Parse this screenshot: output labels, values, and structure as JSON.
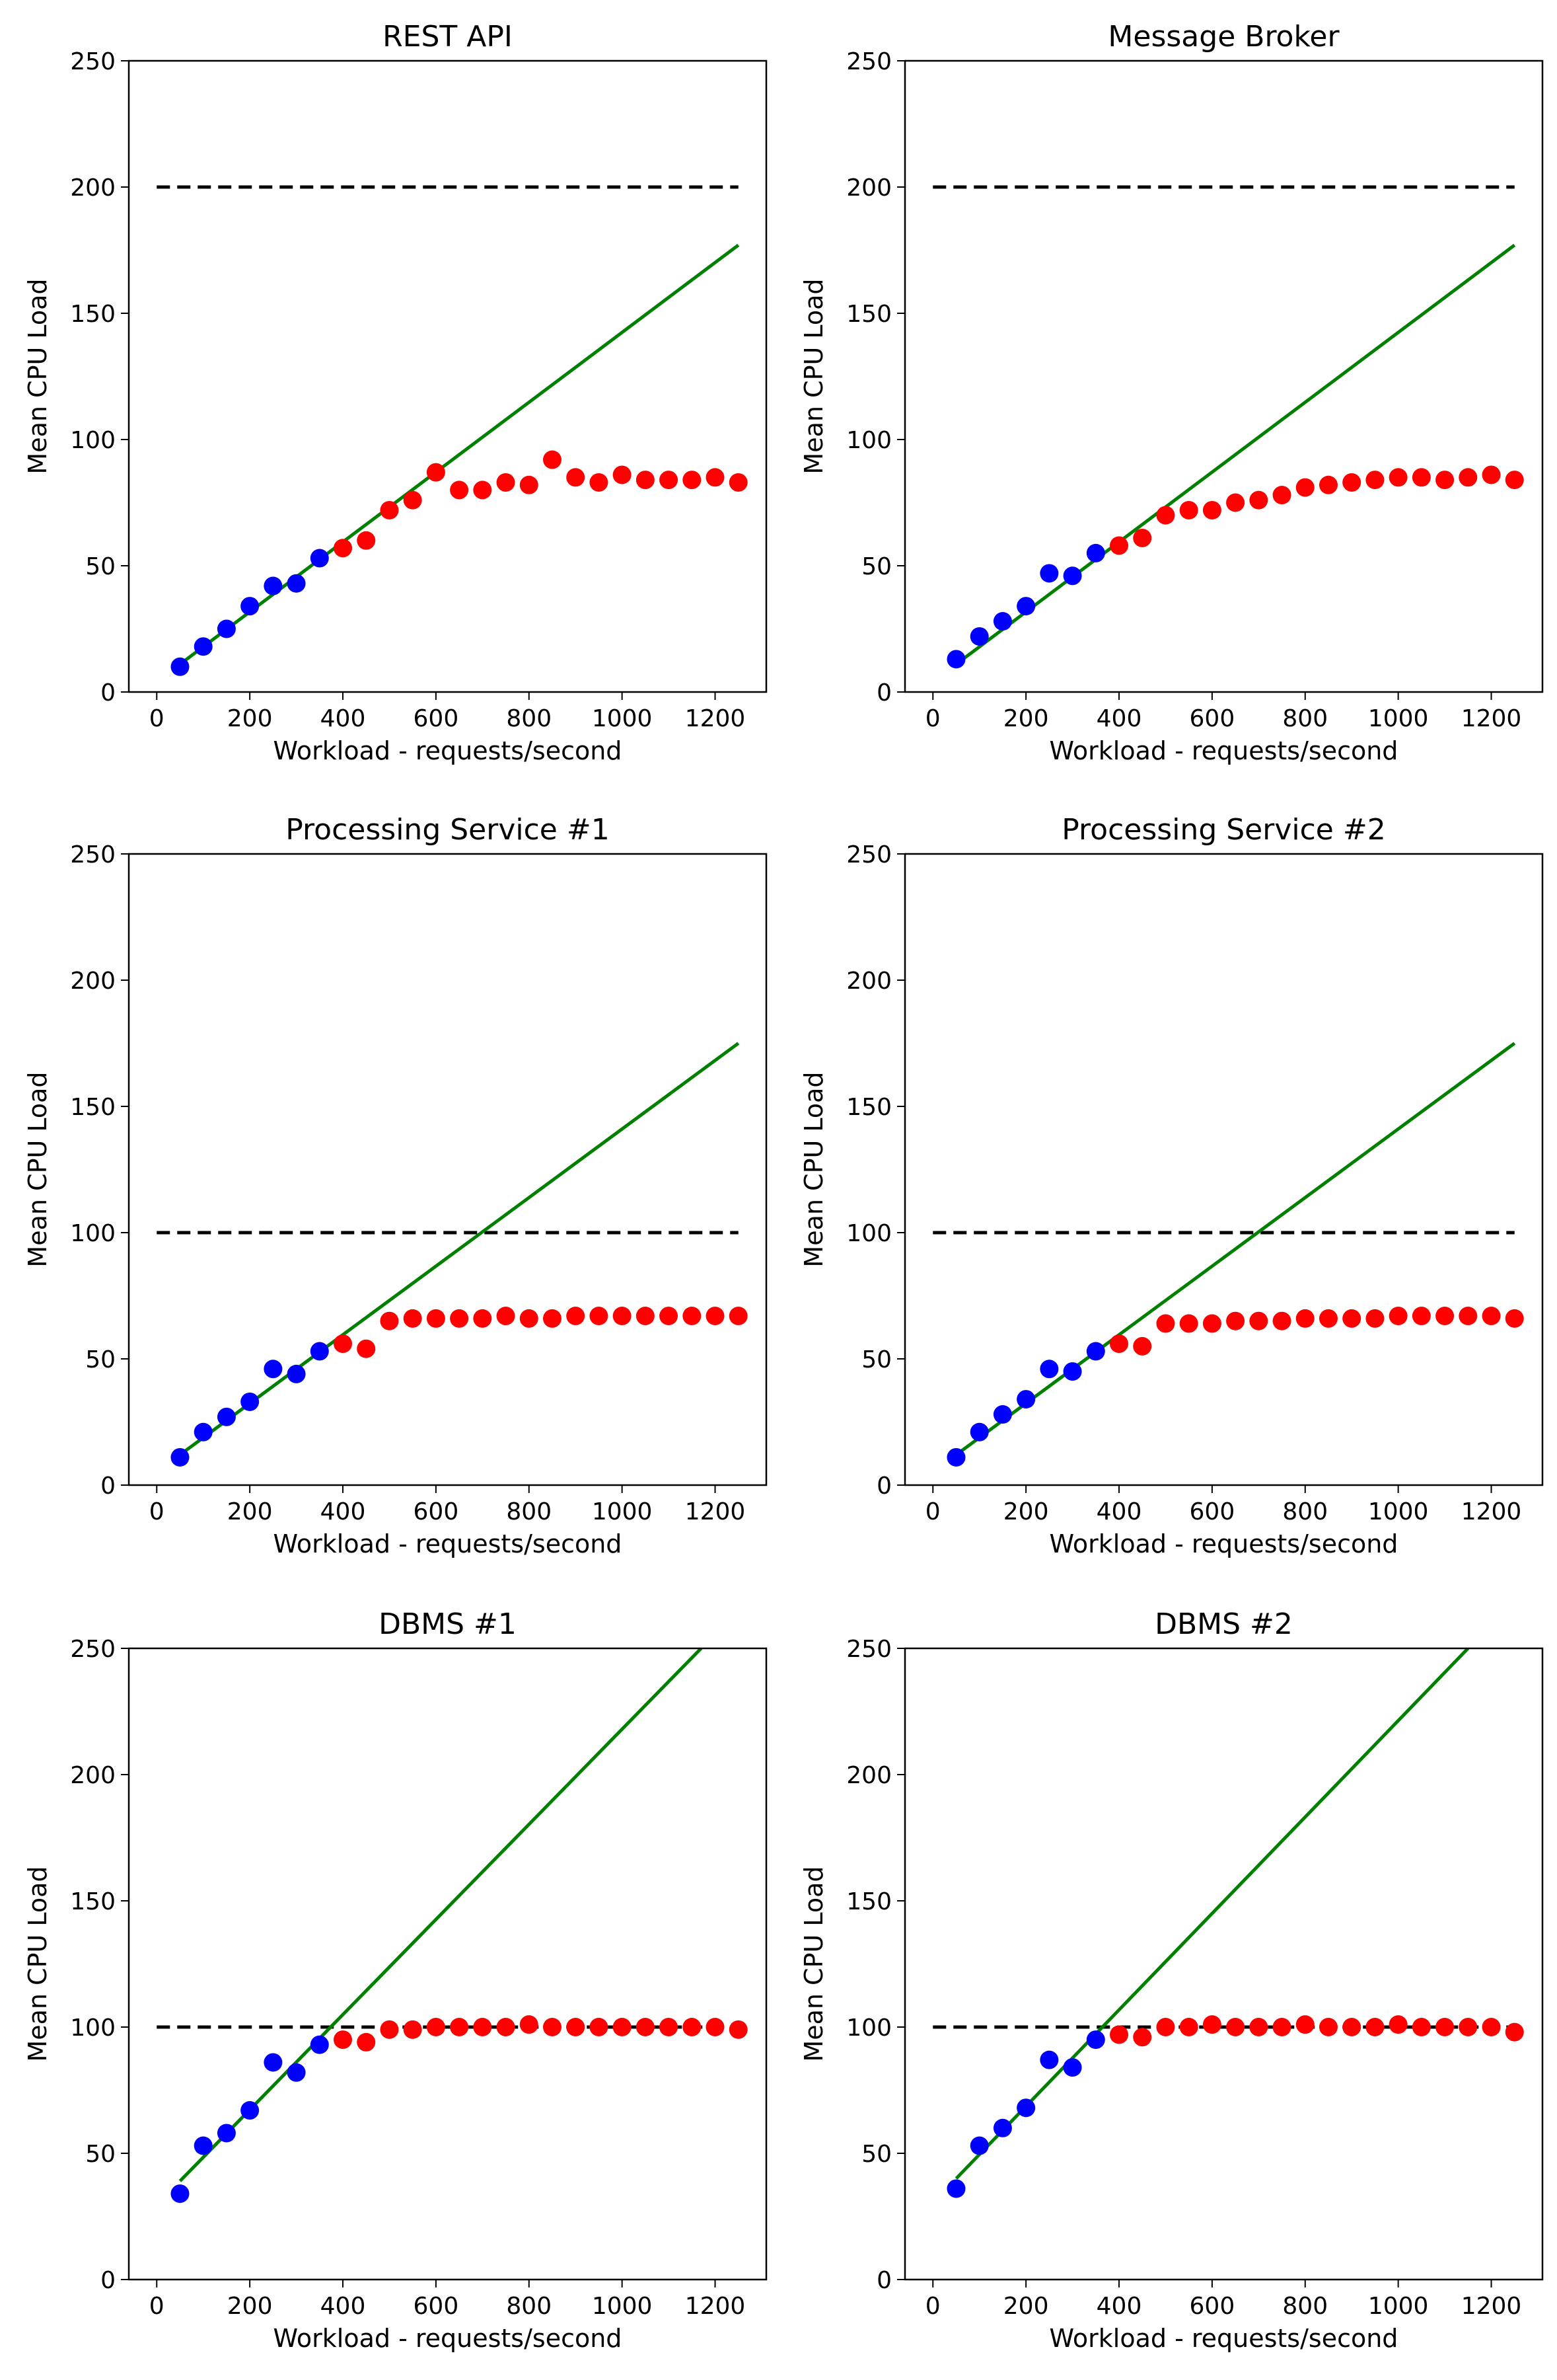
{
  "figure": {
    "xlabel": "Workload - requests/second",
    "ylabel": "Mean CPU Load",
    "colors": {
      "baseline_point": "#0000ff",
      "saturated_point": "#ff0000",
      "fit_line": "#008000",
      "threshold_line": "#000000"
    }
  },
  "chart_data": [
    {
      "type": "scatter",
      "title": "REST API",
      "xlabel": "Workload - requests/second",
      "ylabel": "Mean CPU Load",
      "xlim": [
        -60,
        1310
      ],
      "ylim": [
        0,
        250
      ],
      "xticks": [
        0,
        200,
        400,
        600,
        800,
        1000,
        1200
      ],
      "yticks": [
        0,
        50,
        100,
        150,
        200,
        250
      ],
      "threshold": 200,
      "threshold_x": [
        0,
        1250
      ],
      "fit_line": {
        "x": [
          50,
          1250
        ],
        "y": [
          11,
          177
        ]
      },
      "series": [
        {
          "name": "baseline",
          "color": "blue",
          "x": [
            50,
            100,
            150,
            200,
            250,
            300,
            350
          ],
          "y": [
            10,
            18,
            25,
            34,
            42,
            43,
            53
          ]
        },
        {
          "name": "saturated",
          "color": "red",
          "x": [
            400,
            450,
            500,
            550,
            600,
            650,
            700,
            750,
            800,
            850,
            900,
            950,
            1000,
            1050,
            1100,
            1150,
            1200,
            1250
          ],
          "y": [
            57,
            60,
            72,
            76,
            87,
            80,
            80,
            83,
            82,
            92,
            85,
            83,
            86,
            84,
            84,
            84,
            85,
            83
          ]
        }
      ]
    },
    {
      "type": "scatter",
      "title": "Message Broker",
      "xlabel": "Workload - requests/second",
      "ylabel": "Mean CPU Load",
      "xlim": [
        -60,
        1310
      ],
      "ylim": [
        0,
        250
      ],
      "xticks": [
        0,
        200,
        400,
        600,
        800,
        1000,
        1200
      ],
      "yticks": [
        0,
        50,
        100,
        150,
        200,
        250
      ],
      "threshold": 200,
      "threshold_x": [
        0,
        1250
      ],
      "fit_line": {
        "x": [
          50,
          1250
        ],
        "y": [
          11,
          177
        ]
      },
      "series": [
        {
          "name": "baseline",
          "color": "blue",
          "x": [
            50,
            100,
            150,
            200,
            250,
            300,
            350
          ],
          "y": [
            13,
            22,
            28,
            34,
            47,
            46,
            55
          ]
        },
        {
          "name": "saturated",
          "color": "red",
          "x": [
            400,
            450,
            500,
            550,
            600,
            650,
            700,
            750,
            800,
            850,
            900,
            950,
            1000,
            1050,
            1100,
            1150,
            1200,
            1250
          ],
          "y": [
            58,
            61,
            70,
            72,
            72,
            75,
            76,
            78,
            81,
            82,
            83,
            84,
            85,
            85,
            84,
            85,
            86,
            84
          ]
        }
      ]
    },
    {
      "type": "scatter",
      "title": "Processing Service #1",
      "xlabel": "Workload - requests/second",
      "ylabel": "Mean CPU Load",
      "xlim": [
        -60,
        1310
      ],
      "ylim": [
        0,
        250
      ],
      "xticks": [
        0,
        200,
        400,
        600,
        800,
        1000,
        1200
      ],
      "yticks": [
        0,
        50,
        100,
        150,
        200,
        250
      ],
      "threshold": 100,
      "threshold_x": [
        0,
        1250
      ],
      "fit_line": {
        "x": [
          50,
          1250
        ],
        "y": [
          12,
          175
        ]
      },
      "series": [
        {
          "name": "baseline",
          "color": "blue",
          "x": [
            50,
            100,
            150,
            200,
            250,
            300,
            350
          ],
          "y": [
            11,
            21,
            27,
            33,
            46,
            44,
            53
          ]
        },
        {
          "name": "saturated",
          "color": "red",
          "x": [
            400,
            450,
            500,
            550,
            600,
            650,
            700,
            750,
            800,
            850,
            900,
            950,
            1000,
            1050,
            1100,
            1150,
            1200,
            1250
          ],
          "y": [
            56,
            54,
            65,
            66,
            66,
            66,
            66,
            67,
            66,
            66,
            67,
            67,
            67,
            67,
            67,
            67,
            67,
            67
          ]
        }
      ]
    },
    {
      "type": "scatter",
      "title": "Processing Service #2",
      "xlabel": "Workload - requests/second",
      "ylabel": "Mean CPU Load",
      "xlim": [
        -60,
        1310
      ],
      "ylim": [
        0,
        250
      ],
      "xticks": [
        0,
        200,
        400,
        600,
        800,
        1000,
        1200
      ],
      "yticks": [
        0,
        50,
        100,
        150,
        200,
        250
      ],
      "threshold": 100,
      "threshold_x": [
        0,
        1250
      ],
      "fit_line": {
        "x": [
          50,
          1250
        ],
        "y": [
          12,
          175
        ]
      },
      "series": [
        {
          "name": "baseline",
          "color": "blue",
          "x": [
            50,
            100,
            150,
            200,
            250,
            300,
            350
          ],
          "y": [
            11,
            21,
            28,
            34,
            46,
            45,
            53
          ]
        },
        {
          "name": "saturated",
          "color": "red",
          "x": [
            400,
            450,
            500,
            550,
            600,
            650,
            700,
            750,
            800,
            850,
            900,
            950,
            1000,
            1050,
            1100,
            1150,
            1200,
            1250
          ],
          "y": [
            56,
            55,
            64,
            64,
            64,
            65,
            65,
            65,
            66,
            66,
            66,
            66,
            67,
            67,
            67,
            67,
            67,
            66
          ]
        }
      ]
    },
    {
      "type": "scatter",
      "title": "DBMS #1",
      "xlabel": "Workload - requests/second",
      "ylabel": "Mean CPU Load",
      "xlim": [
        -60,
        1310
      ],
      "ylim": [
        0,
        250
      ],
      "xticks": [
        0,
        200,
        400,
        600,
        800,
        1000,
        1200
      ],
      "yticks": [
        0,
        50,
        100,
        150,
        200,
        250
      ],
      "threshold": 100,
      "threshold_x": [
        0,
        1250
      ],
      "fit_line": {
        "x": [
          50,
          1170
        ],
        "y": [
          39,
          250
        ]
      },
      "series": [
        {
          "name": "baseline",
          "color": "blue",
          "x": [
            50,
            100,
            150,
            200,
            250,
            300,
            350
          ],
          "y": [
            34,
            53,
            58,
            67,
            86,
            82,
            93
          ]
        },
        {
          "name": "saturated",
          "color": "red",
          "x": [
            400,
            450,
            500,
            550,
            600,
            650,
            700,
            750,
            800,
            850,
            900,
            950,
            1000,
            1050,
            1100,
            1150,
            1200,
            1250
          ],
          "y": [
            95,
            94,
            99,
            99,
            100,
            100,
            100,
            100,
            101,
            100,
            100,
            100,
            100,
            100,
            100,
            100,
            100,
            99
          ]
        }
      ]
    },
    {
      "type": "scatter",
      "title": "DBMS #2",
      "xlabel": "Workload - requests/second",
      "ylabel": "Mean CPU Load",
      "xlim": [
        -60,
        1310
      ],
      "ylim": [
        0,
        250
      ],
      "xticks": [
        0,
        200,
        400,
        600,
        800,
        1000,
        1200
      ],
      "yticks": [
        0,
        50,
        100,
        150,
        200,
        250
      ],
      "threshold": 100,
      "threshold_x": [
        0,
        1250
      ],
      "fit_line": {
        "x": [
          50,
          1150
        ],
        "y": [
          40,
          250
        ]
      },
      "series": [
        {
          "name": "baseline",
          "color": "blue",
          "x": [
            50,
            100,
            150,
            200,
            250,
            300,
            350
          ],
          "y": [
            36,
            53,
            60,
            68,
            87,
            84,
            95
          ]
        },
        {
          "name": "saturated",
          "color": "red",
          "x": [
            400,
            450,
            500,
            550,
            600,
            650,
            700,
            750,
            800,
            850,
            900,
            950,
            1000,
            1050,
            1100,
            1150,
            1200,
            1250
          ],
          "y": [
            97,
            96,
            100,
            100,
            101,
            100,
            100,
            100,
            101,
            100,
            100,
            100,
            101,
            100,
            100,
            100,
            100,
            98
          ]
        }
      ]
    }
  ]
}
